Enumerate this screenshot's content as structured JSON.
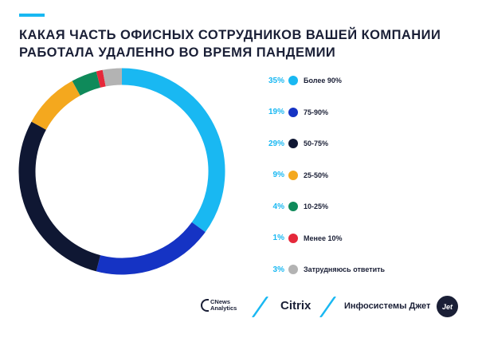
{
  "header": {
    "title_line1": "КАКАЯ ЧАСТЬ ОФИСНЫХ СОТРУДНИКОВ ВАШЕЙ КОМПАНИИ",
    "title_line2": "РАБОТАЛА УДАЛЕННО ВО ВРЕМЯ ПАНДЕМИИ"
  },
  "colors": {
    "accent": "#19b8f2",
    "text": "#1a1f36"
  },
  "chart_data": {
    "type": "pie",
    "variant": "donut",
    "title": "КАКАЯ ЧАСТЬ ОФИСНЫХ СОТРУДНИКОВ ВАШЕЙ КОМПАНИИ РАБОТАЛА УДАЛЕННО ВО ВРЕМЯ ПАНДЕМИИ",
    "start": "top",
    "direction": "clockwise",
    "legend_position": "right",
    "slices": [
      {
        "pct_label": "35%",
        "value": 35,
        "label": "Более 90%",
        "color": "#19b8f2"
      },
      {
        "pct_label": "19%",
        "value": 19,
        "label": "75-90%",
        "color": "#1533c4"
      },
      {
        "pct_label": "29%",
        "value": 29,
        "label": "50-75%",
        "color": "#0f1733"
      },
      {
        "pct_label": "9%",
        "value": 9,
        "label": "25-50%",
        "color": "#f4a81e"
      },
      {
        "pct_label": "4%",
        "value": 4,
        "label": "10-25%",
        "color": "#0f8a5a"
      },
      {
        "pct_label": "1%",
        "value": 1,
        "label": "Менее 10%",
        "color": "#e5283a"
      },
      {
        "pct_label": "3%",
        "value": 3,
        "label": "Затрудняюсь ответить",
        "color": "#b3b3b3"
      }
    ]
  },
  "footer": {
    "cnews_line1": "CNews",
    "cnews_line2": "Analytics",
    "citrix": "Citrix",
    "infosystems": "Инфосистемы Джет",
    "jet_badge": "Jet"
  }
}
